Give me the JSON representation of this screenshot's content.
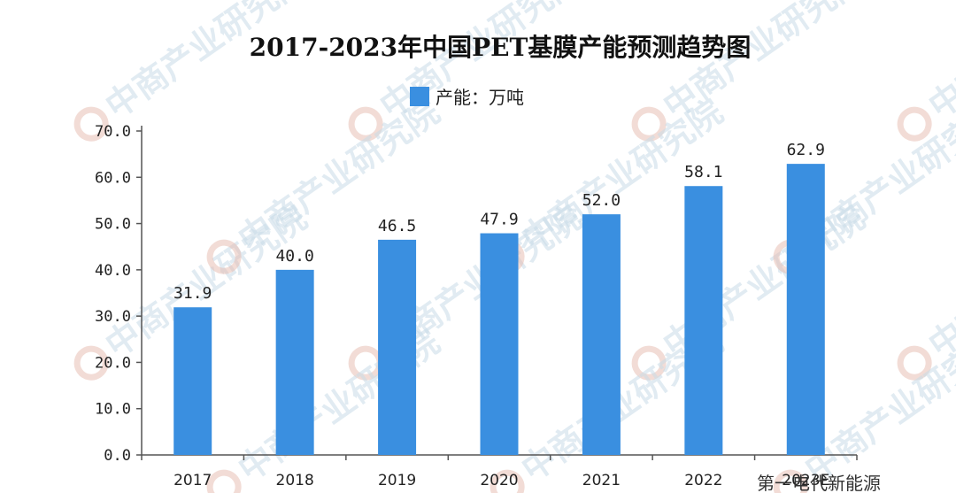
{
  "chart_data": {
    "type": "bar",
    "title": "2017-2023年中国PET基膜产能预测趋势图",
    "legend": {
      "label": "产能：万吨",
      "position": "top-center"
    },
    "categories": [
      "2017",
      "2018",
      "2019",
      "2020",
      "2021",
      "2022",
      "2023E"
    ],
    "series": [
      {
        "name": "产能：万吨",
        "values": [
          31.9,
          40.0,
          46.5,
          47.9,
          52.0,
          58.1,
          62.9
        ]
      }
    ],
    "ylim": [
      0,
      70
    ],
    "yticks": [
      "0.0",
      "10.0",
      "20.0",
      "30.0",
      "40.0",
      "50.0",
      "60.0",
      "70.0"
    ],
    "data_labels": [
      "31.9",
      "40.0",
      "46.5",
      "47.9",
      "52.0",
      "58.1",
      "62.9"
    ],
    "grid": false,
    "colors": {
      "bar": "#3a8fe0",
      "axis": "#555555"
    }
  },
  "watermark": {
    "text": "中商产业研究院"
  },
  "footer": {
    "credit": "第一电代新能源"
  }
}
